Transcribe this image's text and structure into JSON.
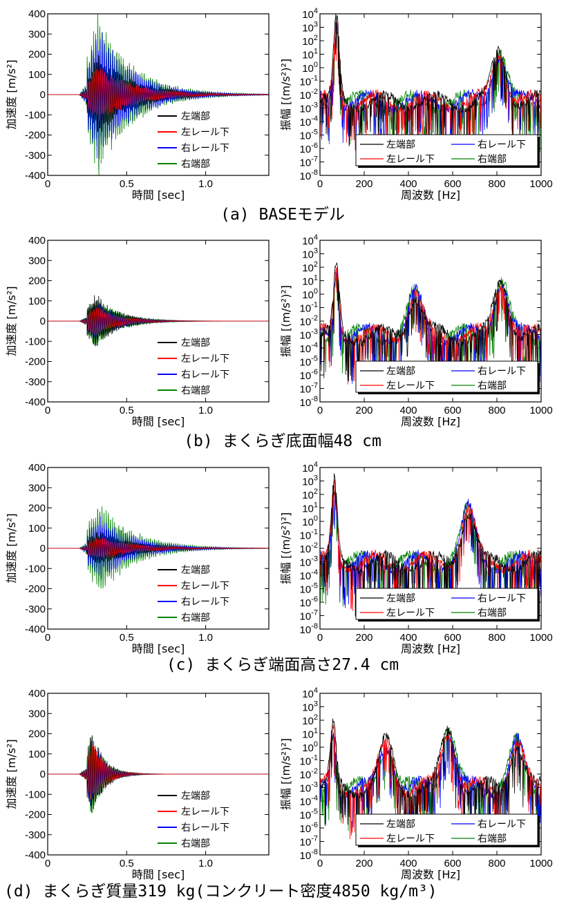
{
  "legend_entries": [
    "左端部",
    "左レール下",
    "右レール下",
    "右端部"
  ],
  "series_colors": [
    "#000000",
    "#ff0000",
    "#0000ff",
    "#008000"
  ],
  "time_axis": {
    "xlabel": "時間 [sec]",
    "ylabel": "加速度 [m/s²]",
    "xticks": [
      "0",
      "0.5",
      "1.0"
    ],
    "xtick_values": [
      0,
      0.5,
      1.0
    ],
    "xlim": [
      0,
      1.4
    ],
    "ylim": [
      -400,
      400
    ],
    "yticks": [
      "-400",
      "-300",
      "-200",
      "-100",
      "0",
      "100",
      "200",
      "300",
      "400"
    ]
  },
  "spectrum_axis": {
    "xlabel": "周波数 [Hz]",
    "ylabel": "振幅 [(m/s²)²]",
    "xticks": [
      "0",
      "200",
      "400",
      "600",
      "800",
      "1000"
    ],
    "xlim": [
      0,
      1000
    ],
    "ylim_log10": [
      -8,
      4
    ],
    "ytick_base": "10",
    "ytick_exponents": [
      "-8",
      "-7",
      "-6",
      "-5",
      "-4",
      "-3",
      "-2",
      "-1",
      "0",
      "1",
      "2",
      "3",
      "4"
    ]
  },
  "chart_data": [
    {
      "type": "line",
      "panel": "a",
      "caption": "(a) BASEモデル",
      "time_series": {
        "envelope_peak": [
          210,
          150,
          350,
          420
        ],
        "burst_center_sec": 0.32,
        "decay_to_sec": 1.1
      },
      "spectrum_series": {
        "peaks_hz": [
          75,
          810
        ],
        "peak_log10": [
          3.5,
          1.2
        ],
        "floor_log10": -2.5
      }
    },
    {
      "type": "line",
      "panel": "b",
      "caption": "(b) まくらぎ底面幅48 cm",
      "time_series": {
        "envelope_peak": [
          150,
          80,
          110,
          140
        ],
        "burst_center_sec": 0.3,
        "decay_to_sec": 0.8
      },
      "spectrum_series": {
        "peaks_hz": [
          75,
          430,
          820
        ],
        "peak_log10": [
          2.0,
          0.0,
          1.0
        ],
        "floor_log10": -3
      }
    },
    {
      "type": "line",
      "panel": "c",
      "caption": "(c) まくらぎ端面高さ27.4 cm",
      "time_series": {
        "envelope_peak": [
          90,
          60,
          170,
          240
        ],
        "burst_center_sec": 0.33,
        "decay_to_sec": 1.1
      },
      "spectrum_series": {
        "peaks_hz": [
          65,
          670
        ],
        "peak_log10": [
          2.7,
          0.8
        ],
        "floor_log10": -3
      }
    },
    {
      "type": "line",
      "panel": "d",
      "caption": "(d) まくらぎ質量319 kg(コンクリート密度4850 kg/m³)",
      "time_series": {
        "envelope_peak": [
          240,
          190,
          200,
          230
        ],
        "burst_center_sec": 0.28,
        "decay_to_sec": 0.55
      },
      "spectrum_series": {
        "peaks_hz": [
          60,
          300,
          580,
          890
        ],
        "peak_log10": [
          1.3,
          0.3,
          1.3,
          0.3
        ],
        "floor_log10": -3
      }
    }
  ]
}
